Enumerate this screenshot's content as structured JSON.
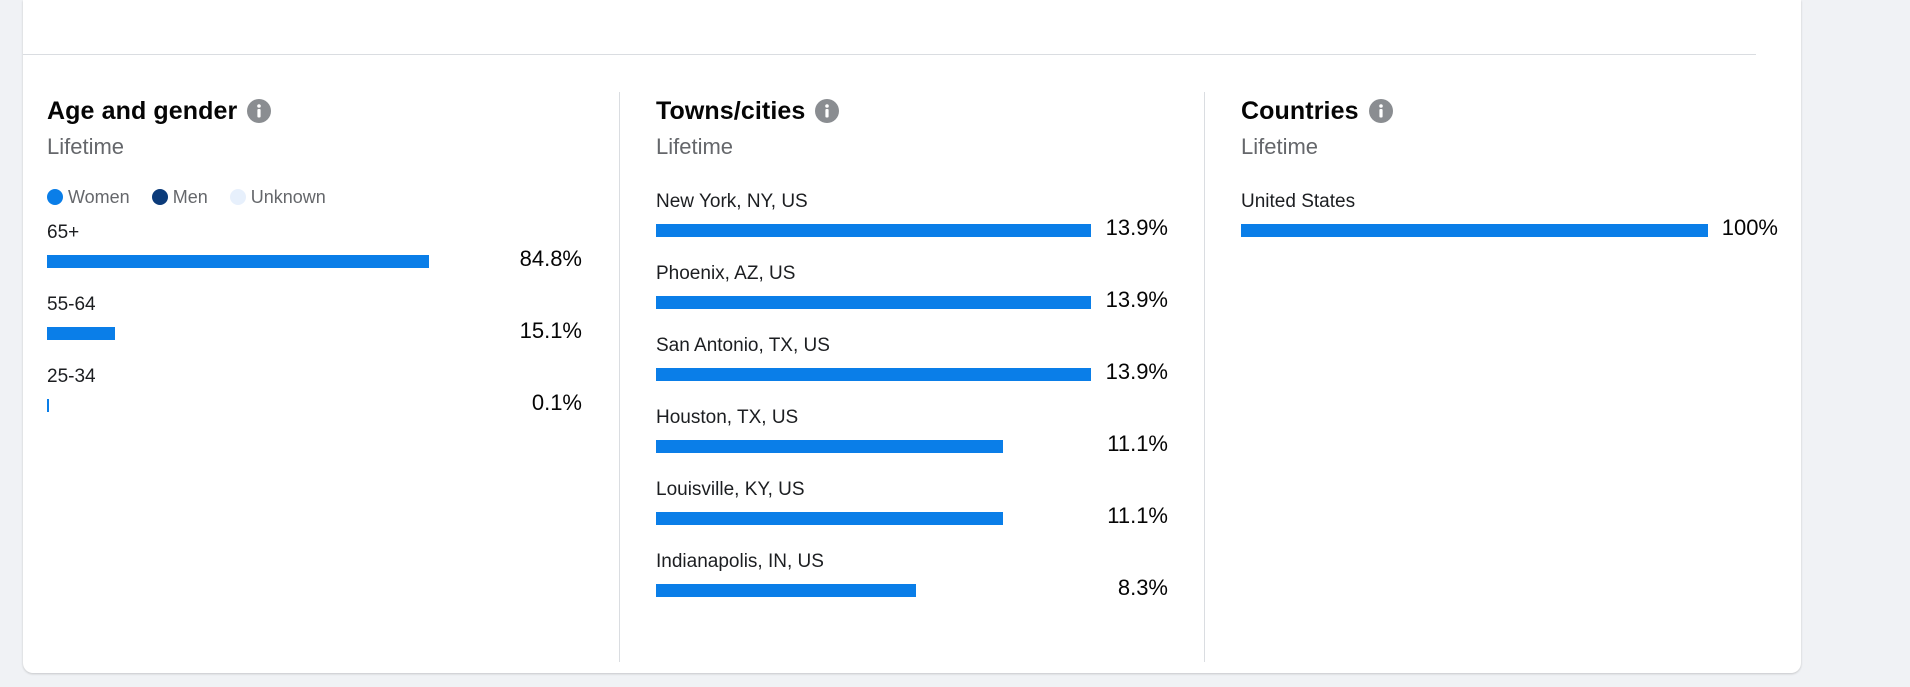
{
  "colors": {
    "women": "#0a7ee8",
    "men": "#0b3b7a",
    "unknown": "#e7f0fc",
    "info_icon": "#8a8d91"
  },
  "age_gender": {
    "title": "Age and gender",
    "subtitle": "Lifetime",
    "legend": [
      {
        "label": "Women",
        "color": "#0a7ee8"
      },
      {
        "label": "Men",
        "color": "#0b3b7a"
      },
      {
        "label": "Unknown",
        "color": "#e7f0fc"
      }
    ],
    "rows": [
      {
        "label": "65+",
        "value": "84.8%",
        "fraction": 0.848
      },
      {
        "label": "55-64",
        "value": "15.1%",
        "fraction": 0.151
      },
      {
        "label": "25-34",
        "value": "0.1%",
        "fraction": 0.001
      }
    ]
  },
  "towns": {
    "title": "Towns/cities",
    "subtitle": "Lifetime",
    "rows": [
      {
        "label": "New York, NY, US",
        "value": "13.9%",
        "fraction": 0.139
      },
      {
        "label": "Phoenix, AZ, US",
        "value": "13.9%",
        "fraction": 0.139
      },
      {
        "label": "San Antonio, TX, US",
        "value": "13.9%",
        "fraction": 0.139
      },
      {
        "label": "Houston, TX, US",
        "value": "11.1%",
        "fraction": 0.111
      },
      {
        "label": "Louisville, KY, US",
        "value": "11.1%",
        "fraction": 0.111
      },
      {
        "label": "Indianapolis, IN, US",
        "value": "8.3%",
        "fraction": 0.083
      }
    ]
  },
  "countries": {
    "title": "Countries",
    "subtitle": "Lifetime",
    "rows": [
      {
        "label": "United States",
        "value": "100%",
        "fraction": 1.0
      }
    ]
  },
  "icons": {
    "info": "info-icon"
  }
}
